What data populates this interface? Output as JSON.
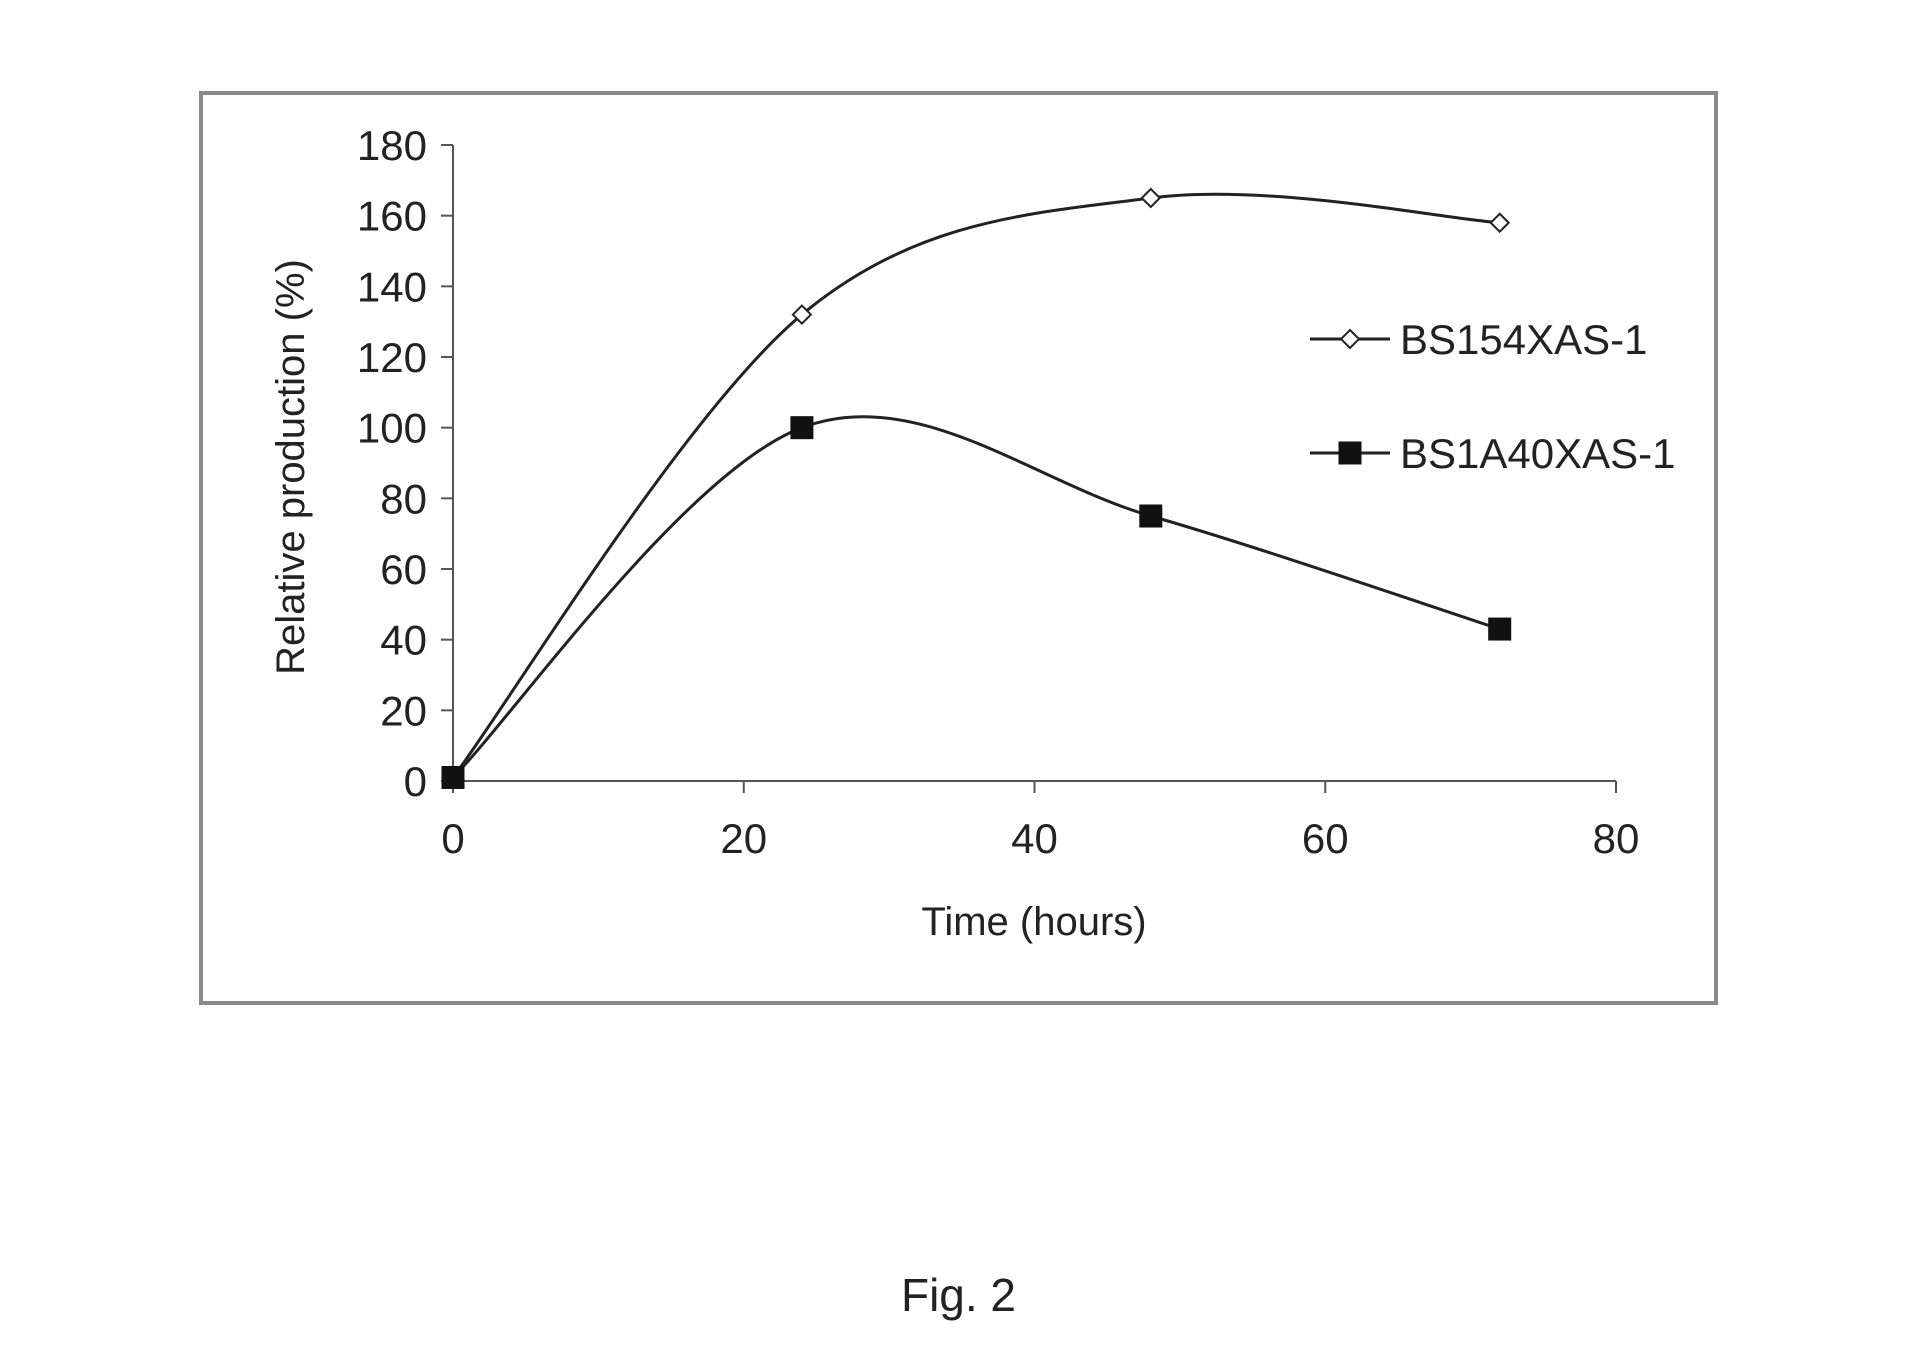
{
  "figure": {
    "caption": "Fig. 2"
  },
  "chart_data": {
    "type": "line",
    "title": "",
    "xlabel": "Time (hours)",
    "ylabel": "Relative production (%)",
    "xlim": [
      0,
      80
    ],
    "ylim": [
      0,
      180
    ],
    "x_ticks": [
      0,
      20,
      40,
      60,
      80
    ],
    "y_ticks": [
      0,
      20,
      40,
      60,
      80,
      100,
      120,
      140,
      160,
      180
    ],
    "grid": false,
    "smooth": true,
    "legend": "right",
    "series": [
      {
        "name": "BS154XAS-1",
        "marker": "diamond-open",
        "color": "#222222",
        "points": [
          [
            0,
            1
          ],
          [
            24,
            132
          ],
          [
            48,
            165
          ],
          [
            72,
            158
          ]
        ]
      },
      {
        "name": "BS1A40XAS-1",
        "marker": "square-filled",
        "color": "#222222",
        "points": [
          [
            0,
            1
          ],
          [
            24,
            100
          ],
          [
            48,
            75
          ],
          [
            72,
            43
          ]
        ]
      }
    ]
  }
}
